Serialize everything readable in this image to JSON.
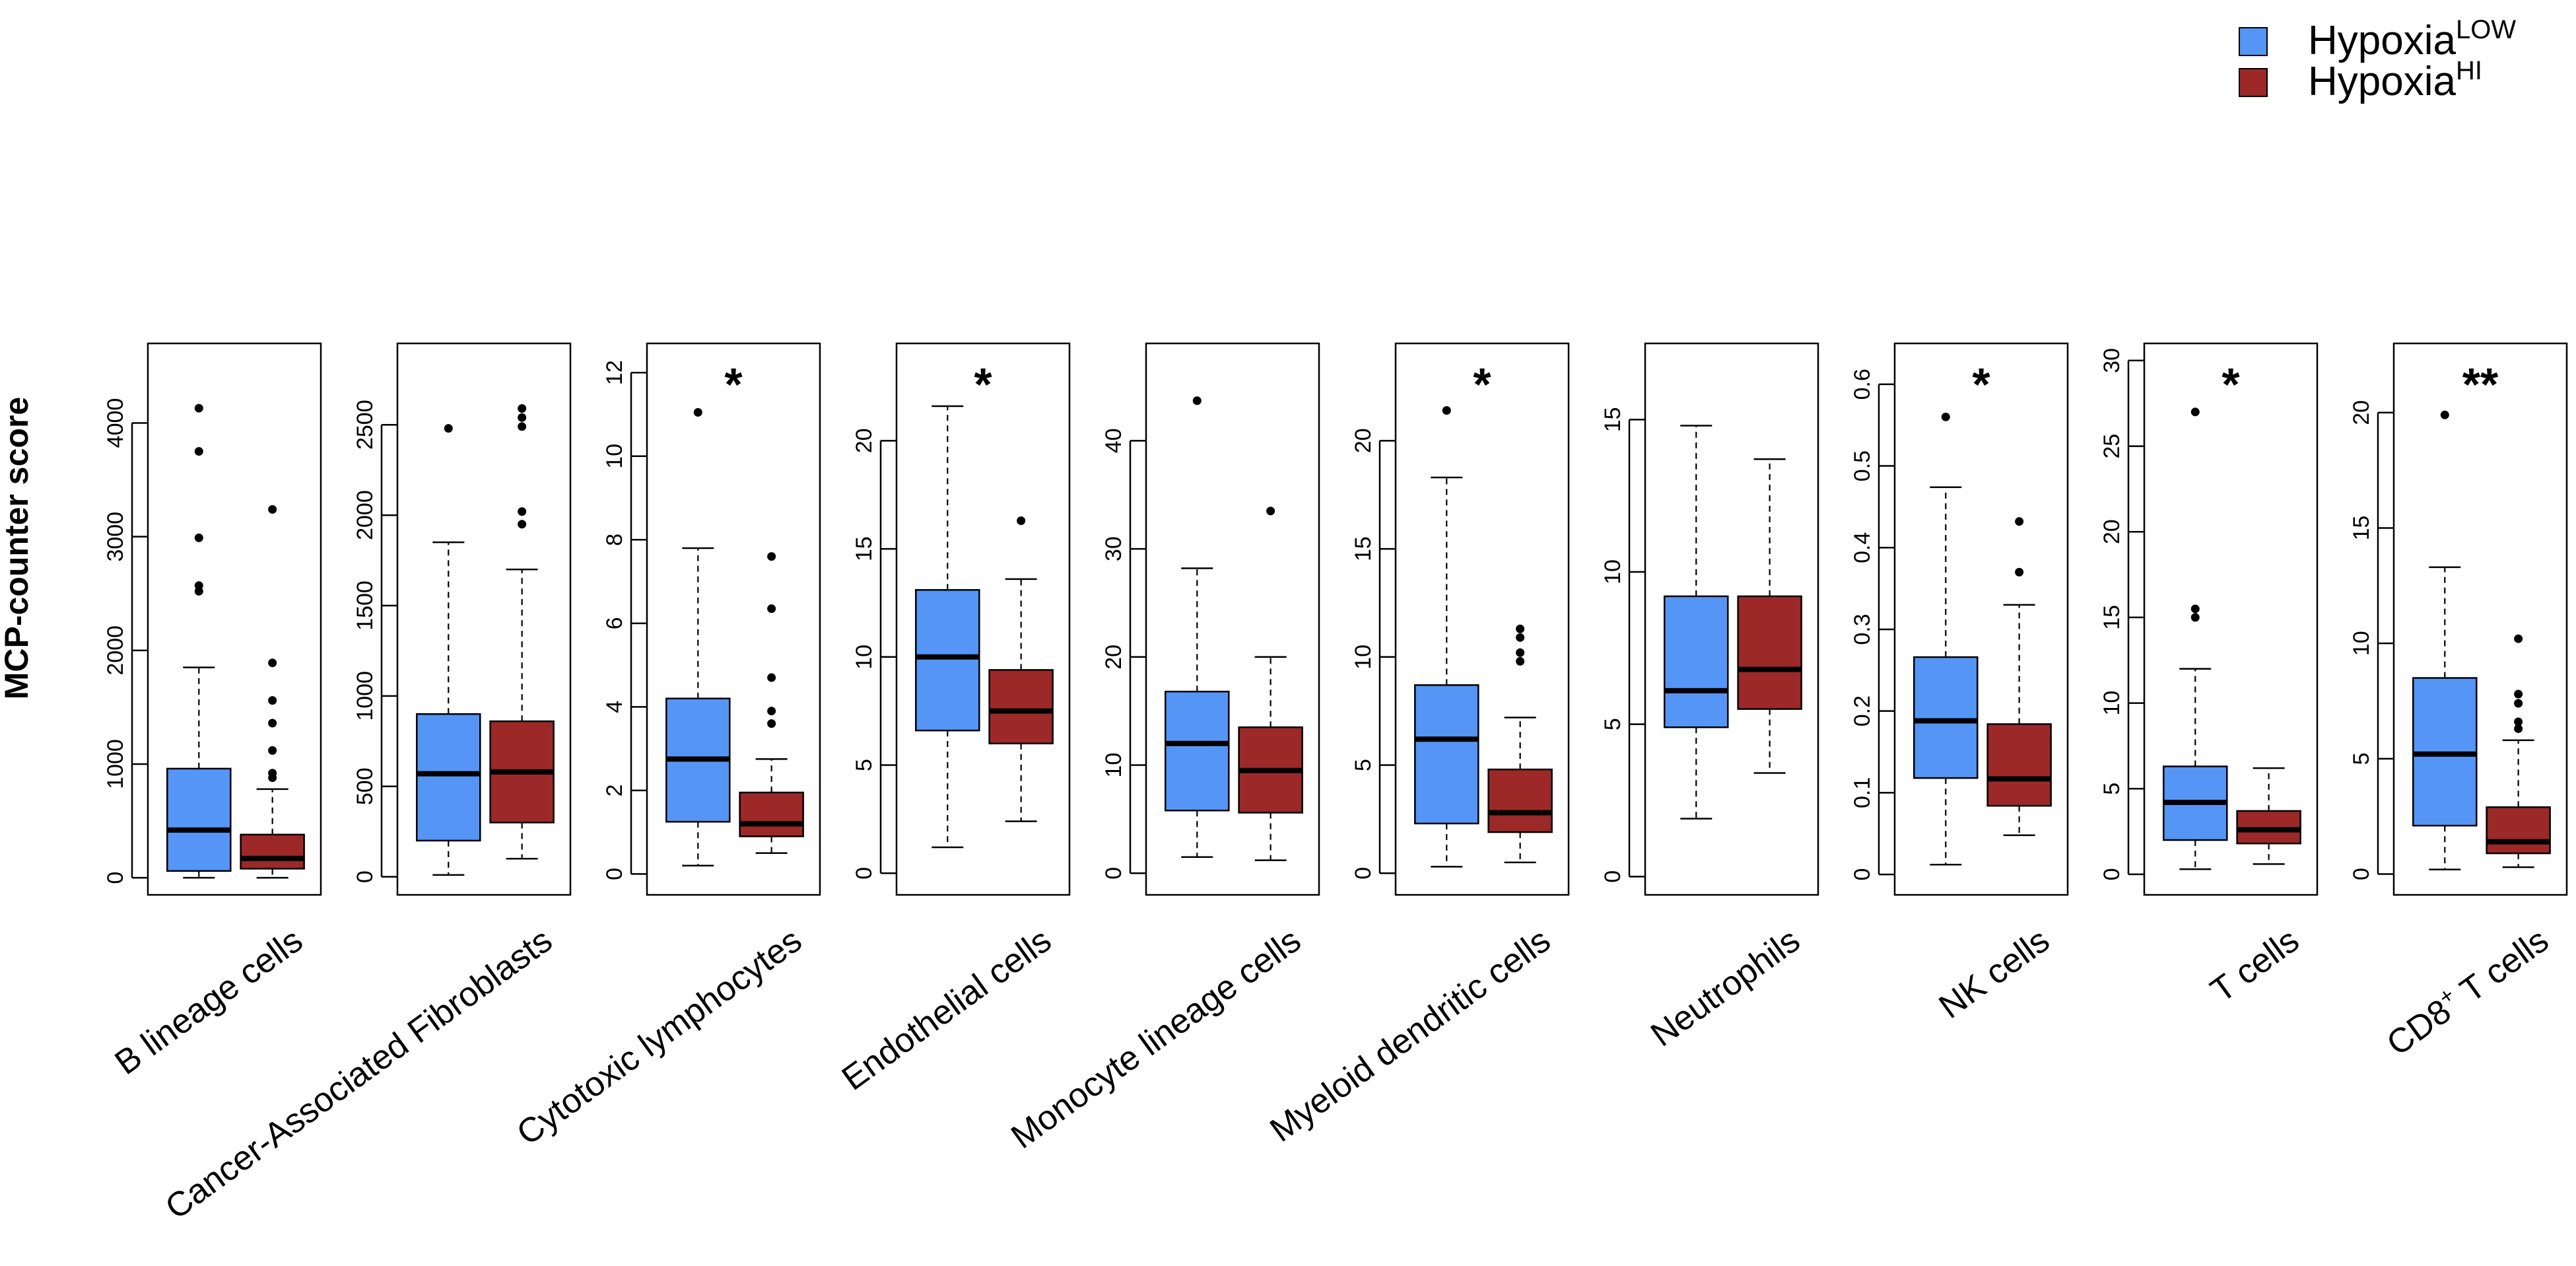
{
  "chart_data": {
    "type": "box",
    "ylabel": "MCP-counter score",
    "legend": {
      "placement": "top-right",
      "entries": [
        {
          "base": "Hypoxia",
          "sup": "LOW",
          "color": "#5595F6"
        },
        {
          "base": "Hypoxia",
          "sup": "HI",
          "color": "#9C2828"
        }
      ]
    },
    "panels": [
      {
        "label": "B lineage cells",
        "label_sup": "",
        "significance": "",
        "ylim": [
          -150,
          4700
        ],
        "yticks": [
          0,
          1000,
          2000,
          3000,
          4000
        ],
        "low": {
          "whisker_low": 0,
          "q1": 60,
          "median": 420,
          "q3": 960,
          "whisker_high": 1850,
          "outliers": [
            2520,
            2570,
            2990,
            3750,
            4130
          ]
        },
        "hi": {
          "whisker_low": 0,
          "q1": 80,
          "median": 170,
          "q3": 380,
          "whisker_high": 780,
          "outliers": [
            880,
            920,
            1120,
            1360,
            1560,
            1890,
            3240
          ]
        }
      },
      {
        "label": "Cancer-Associated Fibroblasts",
        "label_sup": "",
        "significance": "",
        "ylim": [
          -100,
          2950
        ],
        "yticks": [
          0,
          500,
          1000,
          1500,
          2000,
          2500
        ],
        "low": {
          "whisker_low": 10,
          "q1": 200,
          "median": 570,
          "q3": 900,
          "whisker_high": 1850,
          "outliers": [
            2480
          ]
        },
        "hi": {
          "whisker_low": 100,
          "q1": 300,
          "median": 580,
          "q3": 860,
          "whisker_high": 1700,
          "outliers": [
            1950,
            2020,
            2490,
            2540,
            2590
          ]
        }
      },
      {
        "label": "Cytotoxic lymphocytes",
        "label_sup": "",
        "significance": "*",
        "ylim": [
          -0.5,
          12.7
        ],
        "yticks": [
          0,
          2,
          4,
          6,
          8,
          10,
          12
        ],
        "low": {
          "whisker_low": 0.2,
          "q1": 1.25,
          "median": 2.75,
          "q3": 4.2,
          "whisker_high": 7.8,
          "outliers": [
            11.05
          ]
        },
        "hi": {
          "whisker_low": 0.5,
          "q1": 0.9,
          "median": 1.2,
          "q3": 1.95,
          "whisker_high": 2.75,
          "outliers": [
            3.6,
            3.9,
            4.7,
            6.35,
            7.6
          ]
        }
      },
      {
        "label": "Endothelial cells",
        "label_sup": "",
        "significance": "*",
        "ylim": [
          -1,
          24.5
        ],
        "yticks": [
          0,
          5,
          10,
          15,
          20
        ],
        "low": {
          "whisker_low": 1.2,
          "q1": 6.6,
          "median": 10,
          "q3": 13.1,
          "whisker_high": 21.6,
          "outliers": []
        },
        "hi": {
          "whisker_low": 2.4,
          "q1": 6,
          "median": 7.5,
          "q3": 9.4,
          "whisker_high": 13.6,
          "outliers": [
            16.3
          ]
        }
      },
      {
        "label": "Monocyte lineage cells",
        "label_sup": "",
        "significance": "",
        "ylim": [
          -2,
          49
        ],
        "yticks": [
          0,
          10,
          20,
          30,
          40
        ],
        "low": {
          "whisker_low": 1.5,
          "q1": 5.8,
          "median": 12,
          "q3": 16.8,
          "whisker_high": 28.2,
          "outliers": [
            43.7
          ]
        },
        "hi": {
          "whisker_low": 1.2,
          "q1": 5.6,
          "median": 9.5,
          "q3": 13.5,
          "whisker_high": 20,
          "outliers": [
            33.5
          ]
        }
      },
      {
        "label": "Myeloid dendritic cells",
        "label_sup": "",
        "significance": "*",
        "ylim": [
          -1,
          24.5
        ],
        "yticks": [
          0,
          5,
          10,
          15,
          20
        ],
        "low": {
          "whisker_low": 0.3,
          "q1": 2.3,
          "median": 6.2,
          "q3": 8.7,
          "whisker_high": 18.3,
          "outliers": [
            21.4
          ]
        },
        "hi": {
          "whisker_low": 0.5,
          "q1": 1.9,
          "median": 2.8,
          "q3": 4.8,
          "whisker_high": 7.2,
          "outliers": [
            9.8,
            10.2,
            10.9,
            11.3
          ]
        }
      },
      {
        "label": "Neutrophils",
        "label_sup": "",
        "significance": "",
        "ylim": [
          -0.6,
          17.5
        ],
        "yticks": [
          0,
          5,
          10,
          15
        ],
        "low": {
          "whisker_low": 1.9,
          "q1": 4.9,
          "median": 6.1,
          "q3": 9.2,
          "whisker_high": 14.8,
          "outliers": []
        },
        "hi": {
          "whisker_low": 3.4,
          "q1": 5.5,
          "median": 6.8,
          "q3": 9.2,
          "whisker_high": 13.7,
          "outliers": []
        }
      },
      {
        "label": "NK cells",
        "label_sup": "",
        "significance": "*",
        "ylim": [
          -0.025,
          0.65
        ],
        "yticks": [
          0,
          0.1,
          0.2,
          0.3,
          0.4,
          0.5,
          0.6
        ],
        "low": {
          "whisker_low": 0.012,
          "q1": 0.118,
          "median": 0.188,
          "q3": 0.266,
          "whisker_high": 0.474,
          "outliers": [
            0.56
          ]
        },
        "hi": {
          "whisker_low": 0.048,
          "q1": 0.084,
          "median": 0.117,
          "q3": 0.184,
          "whisker_high": 0.33,
          "outliers": [
            0.37,
            0.432
          ]
        }
      },
      {
        "label": "T cells",
        "label_sup": "",
        "significance": "*",
        "ylim": [
          -1.2,
          31
        ],
        "yticks": [
          0,
          5,
          10,
          15,
          20,
          25,
          30
        ],
        "low": {
          "whisker_low": 0.3,
          "q1": 2,
          "median": 4.2,
          "q3": 6.3,
          "whisker_high": 12,
          "outliers": [
            15,
            15.5,
            27
          ]
        },
        "hi": {
          "whisker_low": 0.6,
          "q1": 1.8,
          "median": 2.6,
          "q3": 3.7,
          "whisker_high": 6.2,
          "outliers": []
        }
      },
      {
        "label": "CD8",
        "label_sup": "+",
        "label_rest": " T cells",
        "significance": "**",
        "ylim": [
          -0.9,
          23
        ],
        "yticks": [
          0,
          5,
          10,
          15,
          20
        ],
        "low": {
          "whisker_low": 0.2,
          "q1": 2.1,
          "median": 5.2,
          "q3": 8.5,
          "whisker_high": 13.3,
          "outliers": [
            19.9
          ]
        },
        "hi": {
          "whisker_low": 0.3,
          "q1": 0.9,
          "median": 1.4,
          "q3": 2.9,
          "whisker_high": 5.8,
          "outliers": [
            6.3,
            6.6,
            7.4,
            7.8,
            10.2
          ]
        }
      }
    ]
  }
}
